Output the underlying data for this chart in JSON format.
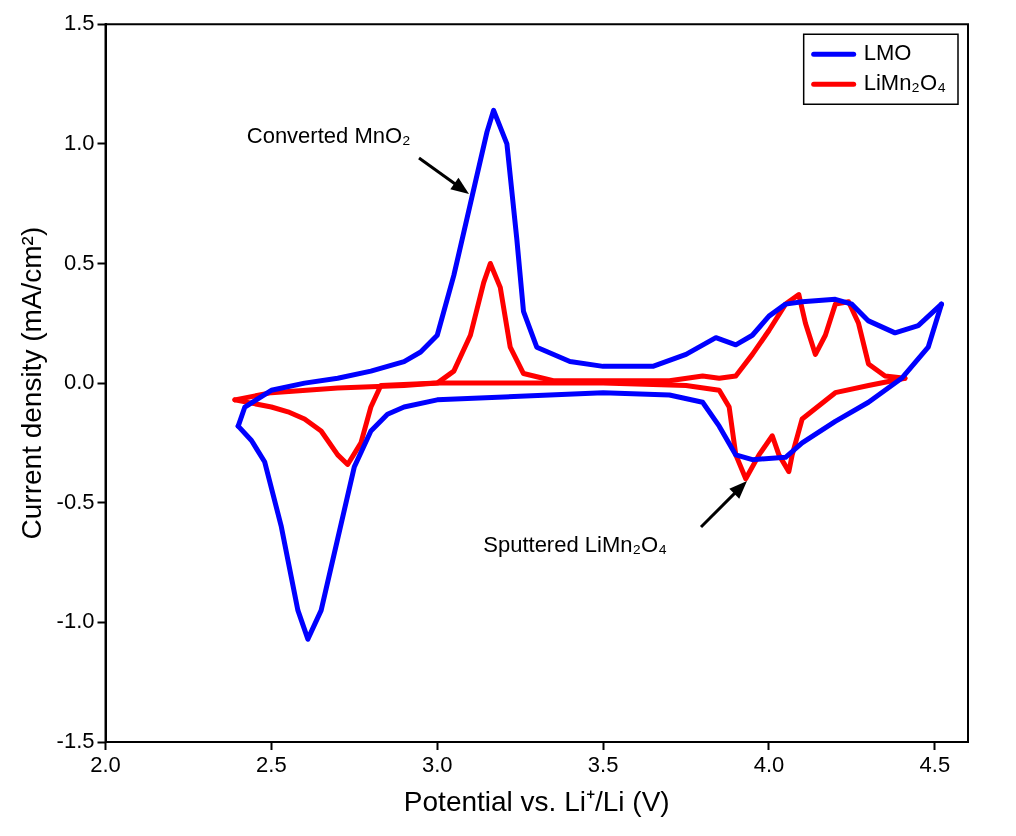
{
  "chart_data": {
    "type": "line",
    "xlabel": "Potential vs. Li⁺/Li (V)",
    "ylabel": "Current density (mA/cm²)",
    "xlim": [
      2.0,
      4.6
    ],
    "xticks": [
      {
        "value": 2,
        "label": "2.0"
      },
      2.5,
      {
        "value": 3,
        "label": "3.0"
      },
      3.5,
      {
        "value": 4,
        "label": "4.0"
      },
      4.5
    ],
    "ylim": [
      -1.5,
      1.5
    ],
    "yticks": [
      -1.5,
      {
        "value": -1,
        "label": "-1.0"
      },
      -0.5,
      {
        "value": 0,
        "label": "0.0"
      },
      0.5,
      {
        "value": 1,
        "label": "1.0"
      },
      1.5
    ],
    "grid": false,
    "legend": "top right",
    "marker": "none",
    "line_style": "solid",
    "series": [
      {
        "name": "LMO",
        "color": "#0000ff",
        "x": [
          2.4,
          2.42,
          2.5,
          2.6,
          2.7,
          2.8,
          2.9,
          2.95,
          3.0,
          3.05,
          3.1,
          3.15,
          3.17,
          3.21,
          3.24,
          3.26,
          3.3,
          3.4,
          3.5,
          3.65,
          3.75,
          3.84,
          3.9,
          3.95,
          4.0,
          4.05,
          4.1,
          4.2,
          4.25,
          4.3,
          4.38,
          4.45,
          4.52
        ],
        "values": [
          -0.18,
          -0.1,
          -0.03,
          0.0,
          0.02,
          0.05,
          0.09,
          0.13,
          0.2,
          0.45,
          0.75,
          1.05,
          1.14,
          1.0,
          0.6,
          0.3,
          0.15,
          0.09,
          0.07,
          0.07,
          0.12,
          0.19,
          0.16,
          0.2,
          0.28,
          0.33,
          0.34,
          0.35,
          0.33,
          0.26,
          0.21,
          0.24,
          0.33
        ]
      },
      {
        "color": "#0000ff",
        "x": [
          4.52,
          4.48,
          4.4,
          4.3,
          4.2,
          4.1,
          4.05,
          3.95,
          3.9,
          3.85,
          3.8,
          3.7,
          3.5,
          3.0,
          2.9,
          2.85,
          2.8,
          2.75,
          2.7,
          2.65,
          2.61,
          2.58,
          2.53,
          2.48,
          2.44,
          2.4
        ],
        "values": [
          0.33,
          0.15,
          0.02,
          -0.08,
          -0.16,
          -0.25,
          -0.31,
          -0.32,
          -0.3,
          -0.18,
          -0.08,
          -0.05,
          -0.04,
          -0.07,
          -0.1,
          -0.13,
          -0.2,
          -0.35,
          -0.65,
          -0.95,
          -1.07,
          -0.95,
          -0.6,
          -0.33,
          -0.24,
          -0.18
        ]
      },
      {
        "name": "LiMn₂O₄",
        "color": "#ff0000",
        "x": [
          2.39,
          2.5,
          2.7,
          2.9,
          3.0,
          3.05,
          3.1,
          3.14,
          3.16,
          3.19,
          3.22,
          3.26,
          3.35,
          3.7,
          3.8,
          3.85,
          3.9,
          3.95,
          4.0,
          4.05,
          4.09,
          4.11,
          4.14,
          4.17,
          4.2,
          4.24,
          4.27,
          4.3,
          4.35,
          4.41
        ],
        "values": [
          -0.07,
          -0.04,
          -0.02,
          -0.01,
          0.0,
          0.05,
          0.2,
          0.42,
          0.5,
          0.4,
          0.15,
          0.04,
          0.01,
          0.01,
          0.03,
          0.02,
          0.03,
          0.12,
          0.22,
          0.33,
          0.37,
          0.25,
          0.12,
          0.2,
          0.33,
          0.34,
          0.25,
          0.08,
          0.03,
          0.02
        ]
      },
      {
        "color": "#ff0000",
        "x": [
          4.41,
          4.3,
          4.2,
          4.1,
          4.07,
          4.06,
          4.03,
          4.01,
          3.97,
          3.93,
          3.9,
          3.88,
          3.85,
          3.75,
          3.5,
          3.0,
          2.83,
          2.8,
          2.77,
          2.73,
          2.7,
          2.65,
          2.6,
          2.55,
          2.5,
          2.39
        ],
        "values": [
          0.02,
          -0.01,
          -0.04,
          -0.15,
          -0.3,
          -0.37,
          -0.3,
          -0.22,
          -0.3,
          -0.4,
          -0.3,
          -0.1,
          -0.03,
          -0.01,
          0.0,
          0.0,
          -0.01,
          -0.1,
          -0.25,
          -0.34,
          -0.3,
          -0.2,
          -0.15,
          -0.12,
          -0.1,
          -0.07
        ]
      }
    ],
    "annotations": [
      "Converted MnO₂",
      "Sputtered LiMn₂O₄"
    ]
  }
}
